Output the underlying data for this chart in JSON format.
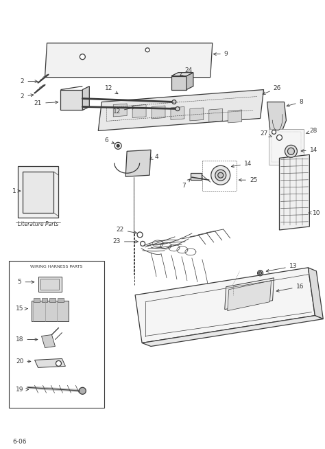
{
  "bg_color": "#ffffff",
  "line_color": "#3a3a3a",
  "fig_width": 4.74,
  "fig_height": 6.54,
  "dpi": 100,
  "footer_text": "6-06",
  "literature_parts_label": "Literature Parts",
  "wiring_harness_label": "WIRING HARNESS PARTS"
}
